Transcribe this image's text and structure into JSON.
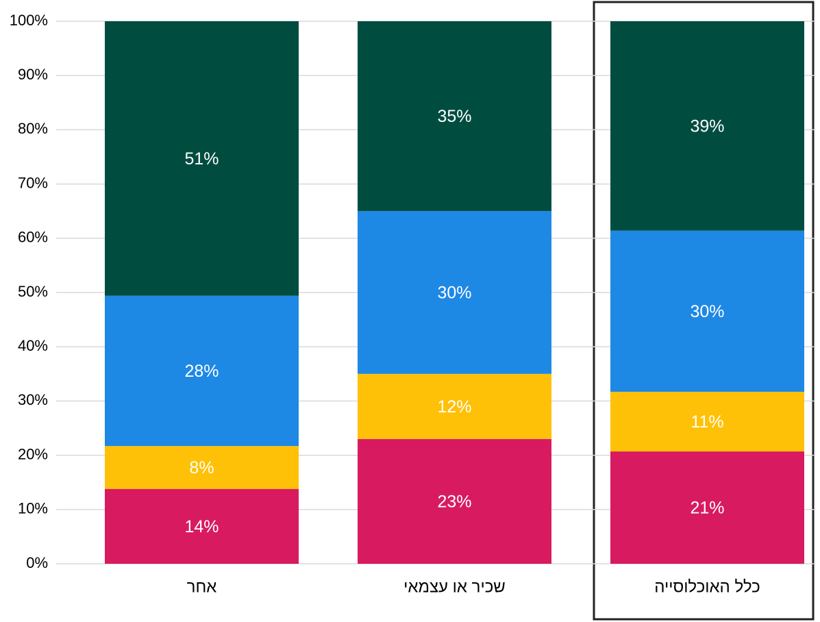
{
  "chart_data": {
    "type": "stacked_bar",
    "categories": [
      "אחר",
      "שכיר או עצמאי",
      "כלל האוכלוסייה"
    ],
    "series": [
      {
        "color": "#d81b60",
        "values": [
          13.8,
          23.0,
          20.7
        ],
        "value_labels": [
          "14%",
          "23%",
          "21%"
        ]
      },
      {
        "color": "#ffc107",
        "values": [
          7.9,
          12.0,
          11.0
        ],
        "value_labels": [
          "8%",
          "12%",
          "11%"
        ]
      },
      {
        "color": "#1e88e5",
        "values": [
          27.7,
          30.0,
          29.7
        ],
        "value_labels": [
          "28%",
          "30%",
          "30%"
        ]
      },
      {
        "color": "#004d40",
        "values": [
          50.6,
          35.0,
          38.6
        ],
        "value_labels": [
          "51%",
          "35%",
          "39%"
        ]
      }
    ],
    "ylim": [
      0,
      100
    ],
    "yticks": [
      {
        "value": 0,
        "label": "0%"
      },
      {
        "value": 10,
        "label": "10%"
      },
      {
        "value": 20,
        "label": "20%"
      },
      {
        "value": 30,
        "label": "30%"
      },
      {
        "value": 40,
        "label": "40%"
      },
      {
        "value": 50,
        "label": "50%"
      },
      {
        "value": 60,
        "label": "60%"
      },
      {
        "value": 70,
        "label": "70%"
      },
      {
        "value": 80,
        "label": "80%"
      },
      {
        "value": 90,
        "label": "90%"
      },
      {
        "value": 100,
        "label": "100%"
      }
    ],
    "grid": true
  }
}
